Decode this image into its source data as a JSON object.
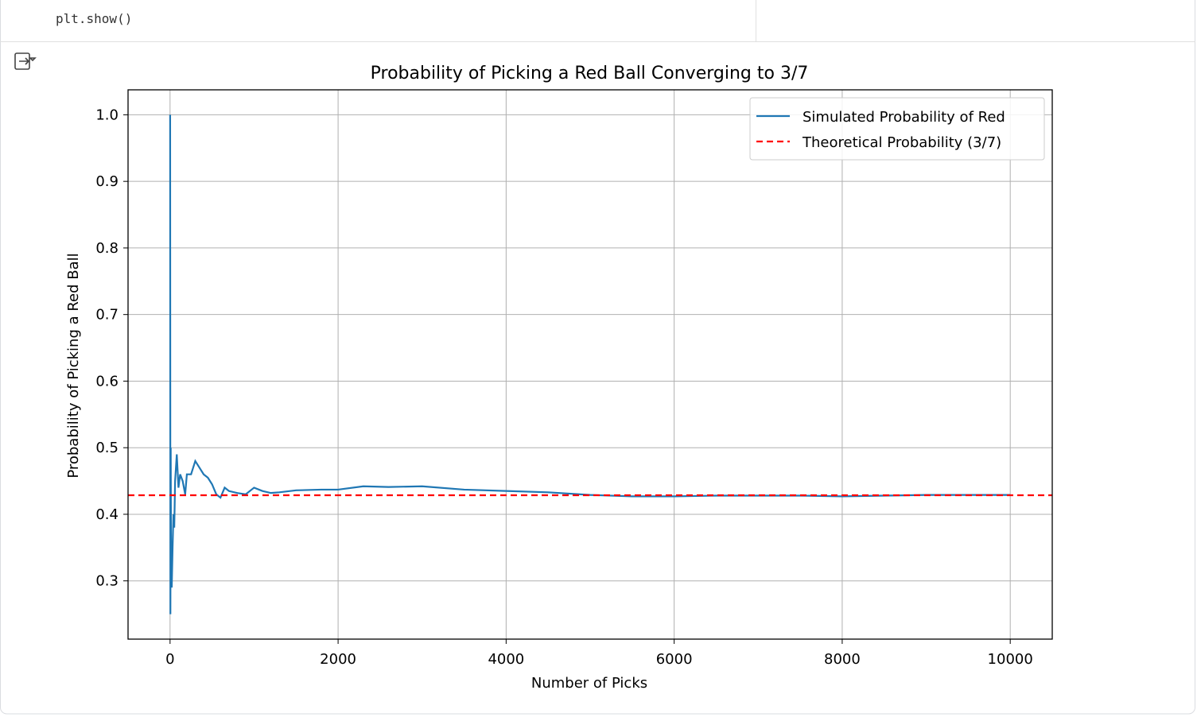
{
  "code": {
    "line": "plt.show()"
  },
  "chart_data": {
    "type": "line",
    "title": "Probability of Picking a Red Ball Converging to 3/7",
    "xlabel": "Number of Picks",
    "ylabel": "Probability of Picking a Red Ball",
    "xlim": [
      -500,
      10500
    ],
    "ylim": [
      0.2125,
      1.0375
    ],
    "xticks": [
      0,
      2000,
      4000,
      6000,
      8000,
      10000
    ],
    "yticks": [
      0.3,
      0.4,
      0.5,
      0.6,
      0.7,
      0.8,
      0.9,
      {
        "value": 1,
        "label": "1.0"
      }
    ],
    "grid": true,
    "legend": "upper right",
    "series": [
      {
        "name": "Simulated Probability of Red",
        "color": "#1f77b4",
        "x": [
          1,
          4,
          8,
          12,
          20,
          30,
          40,
          50,
          60,
          80,
          100,
          120,
          150,
          180,
          200,
          250,
          300,
          350,
          400,
          450,
          500,
          550,
          600,
          650,
          700,
          800,
          900,
          1000,
          1100,
          1200,
          1300,
          1500,
          1800,
          2000,
          2300,
          2600,
          3000,
          3500,
          4000,
          4500,
          5000,
          5500,
          6000,
          6500,
          7000,
          7500,
          8000,
          8500,
          9000,
          9500,
          10000
        ],
        "values": [
          1.0,
          0.25,
          0.5,
          0.3,
          0.29,
          0.35,
          0.4,
          0.38,
          0.45,
          0.49,
          0.44,
          0.46,
          0.45,
          0.43,
          0.46,
          0.46,
          0.48,
          0.47,
          0.46,
          0.455,
          0.445,
          0.43,
          0.425,
          0.44,
          0.435,
          0.432,
          0.43,
          0.44,
          0.435,
          0.432,
          0.433,
          0.436,
          0.437,
          0.437,
          0.442,
          0.441,
          0.442,
          0.437,
          0.435,
          0.433,
          0.429,
          0.427,
          0.427,
          0.428,
          0.428,
          0.428,
          0.427,
          0.428,
          0.429,
          0.429,
          0.429
        ]
      }
    ],
    "reference_line": {
      "name": "Theoretical Probability (3/7)",
      "value": 0.4286,
      "color": "#ff0000",
      "style": "dashed"
    }
  }
}
